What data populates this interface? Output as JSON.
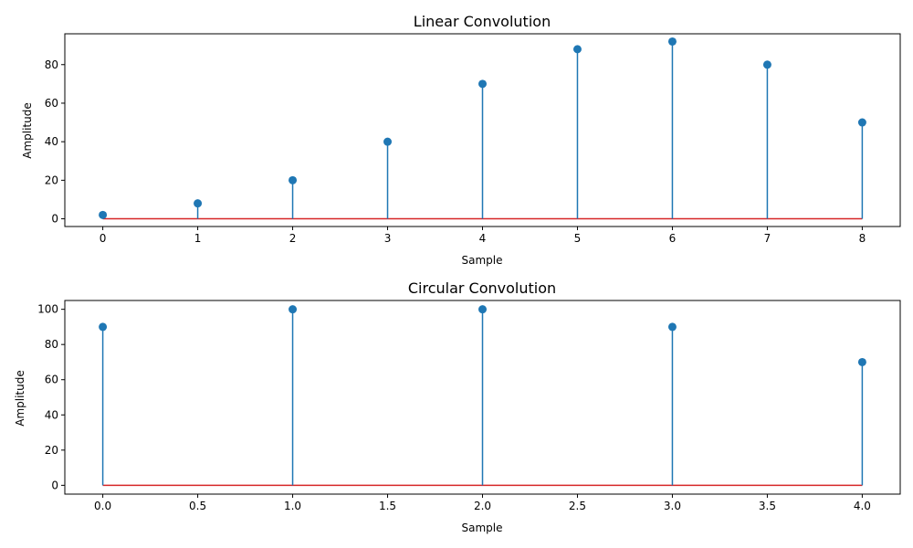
{
  "colors": {
    "stem": "#1f77b4",
    "baseline": "#d62728",
    "background": "#ffffff",
    "frame": "#000000"
  },
  "chart_data": [
    {
      "type": "stem",
      "title": "Linear Convolution",
      "xlabel": "Sample",
      "ylabel": "Amplitude",
      "x": [
        0,
        1,
        2,
        3,
        4,
        5,
        6,
        7,
        8
      ],
      "values": [
        2,
        8,
        20,
        40,
        70,
        88,
        92,
        80,
        50
      ],
      "baseline": 0,
      "xlim": [
        -0.4,
        8.4
      ],
      "ylim": [
        -4,
        96
      ],
      "xticks": [
        0,
        1,
        2,
        3,
        4,
        5,
        6,
        7,
        8
      ],
      "xtick_labels": [
        "0",
        "1",
        "2",
        "3",
        "4",
        "5",
        "6",
        "7",
        "8"
      ],
      "yticks": [
        0,
        20,
        40,
        60,
        80
      ],
      "ytick_labels": [
        "0",
        "20",
        "40",
        "60",
        "80"
      ],
      "grid": false
    },
    {
      "type": "stem",
      "title": "Circular Convolution",
      "xlabel": "Sample",
      "ylabel": "Amplitude",
      "x": [
        0,
        1,
        2,
        3,
        4
      ],
      "values": [
        90,
        100,
        100,
        90,
        70
      ],
      "baseline": 0,
      "xlim": [
        -0.2,
        4.2
      ],
      "ylim": [
        -5,
        105
      ],
      "xticks": [
        0,
        0.5,
        1,
        1.5,
        2,
        2.5,
        3,
        3.5,
        4
      ],
      "xtick_labels": [
        "0.0",
        "0.5",
        "1.0",
        "1.5",
        "2.0",
        "2.5",
        "3.0",
        "3.5",
        "4.0"
      ],
      "yticks": [
        0,
        20,
        40,
        60,
        80,
        100
      ],
      "ytick_labels": [
        "0",
        "20",
        "40",
        "60",
        "80",
        "100"
      ],
      "grid": false
    }
  ]
}
